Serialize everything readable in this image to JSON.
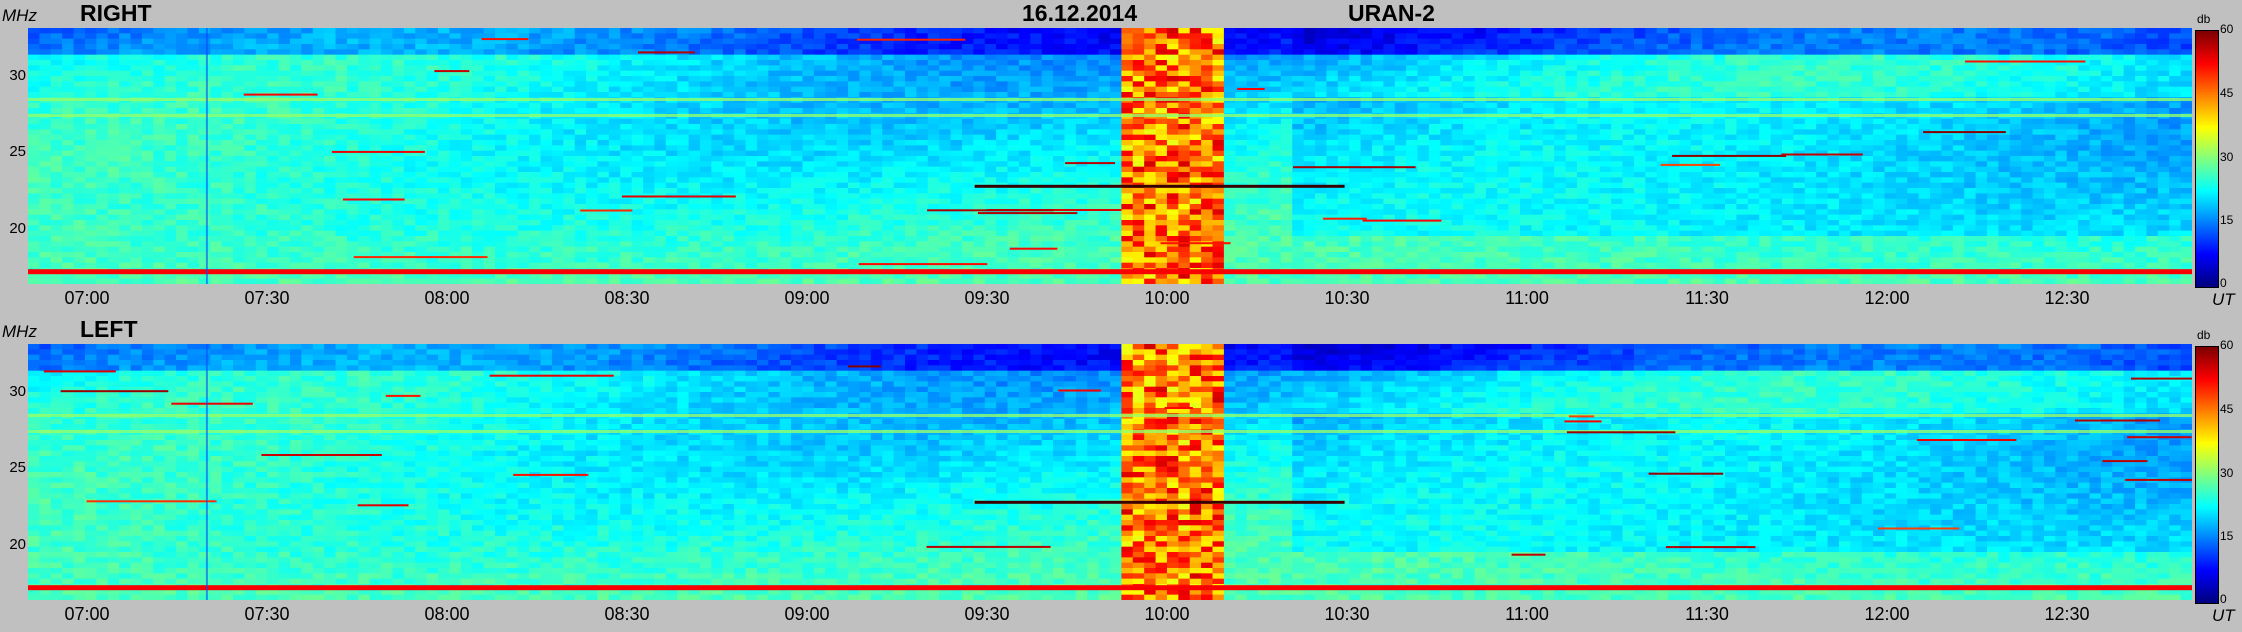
{
  "header": {
    "date": "16.12.2014",
    "instrument": "URAN-2"
  },
  "panels": [
    {
      "title": "RIGHT",
      "y_unit": "MHz",
      "x_unit": "UT"
    },
    {
      "title": "LEFT",
      "y_unit": "MHz",
      "x_unit": "UT"
    }
  ],
  "colorbar": {
    "label": "db",
    "ticks": [
      "60",
      "45",
      "30",
      "15",
      "0"
    ],
    "range": [
      0,
      60
    ],
    "colormap": "jet",
    "colors": [
      "#00008f",
      "#0000ff",
      "#00ffff",
      "#ffff00",
      "#ff0000",
      "#800000"
    ]
  },
  "chart_data": {
    "type": "heatmap",
    "title": "16.12.2014",
    "x_range": [
      "06:50",
      "12:55"
    ],
    "y_range": [
      17,
      33
    ],
    "x_ticks": [
      "07:00",
      "07:30",
      "08:00",
      "08:30",
      "09:00",
      "09:30",
      "10:00",
      "10:30",
      "11:00",
      "11:30",
      "12:00",
      "12:30"
    ],
    "y_ticks": [
      20,
      25,
      30
    ],
    "xlabel": "UT",
    "ylabel": "MHz",
    "zlabel": "db",
    "zlim": [
      0,
      60
    ],
    "series": [
      {
        "name": "RIGHT"
      },
      {
        "name": "LEFT"
      }
    ],
    "features": {
      "burst_interval": [
        "09:55",
        "10:10"
      ],
      "persistent_band_mhz": [
        17.8,
        27.5,
        28.5
      ]
    }
  }
}
